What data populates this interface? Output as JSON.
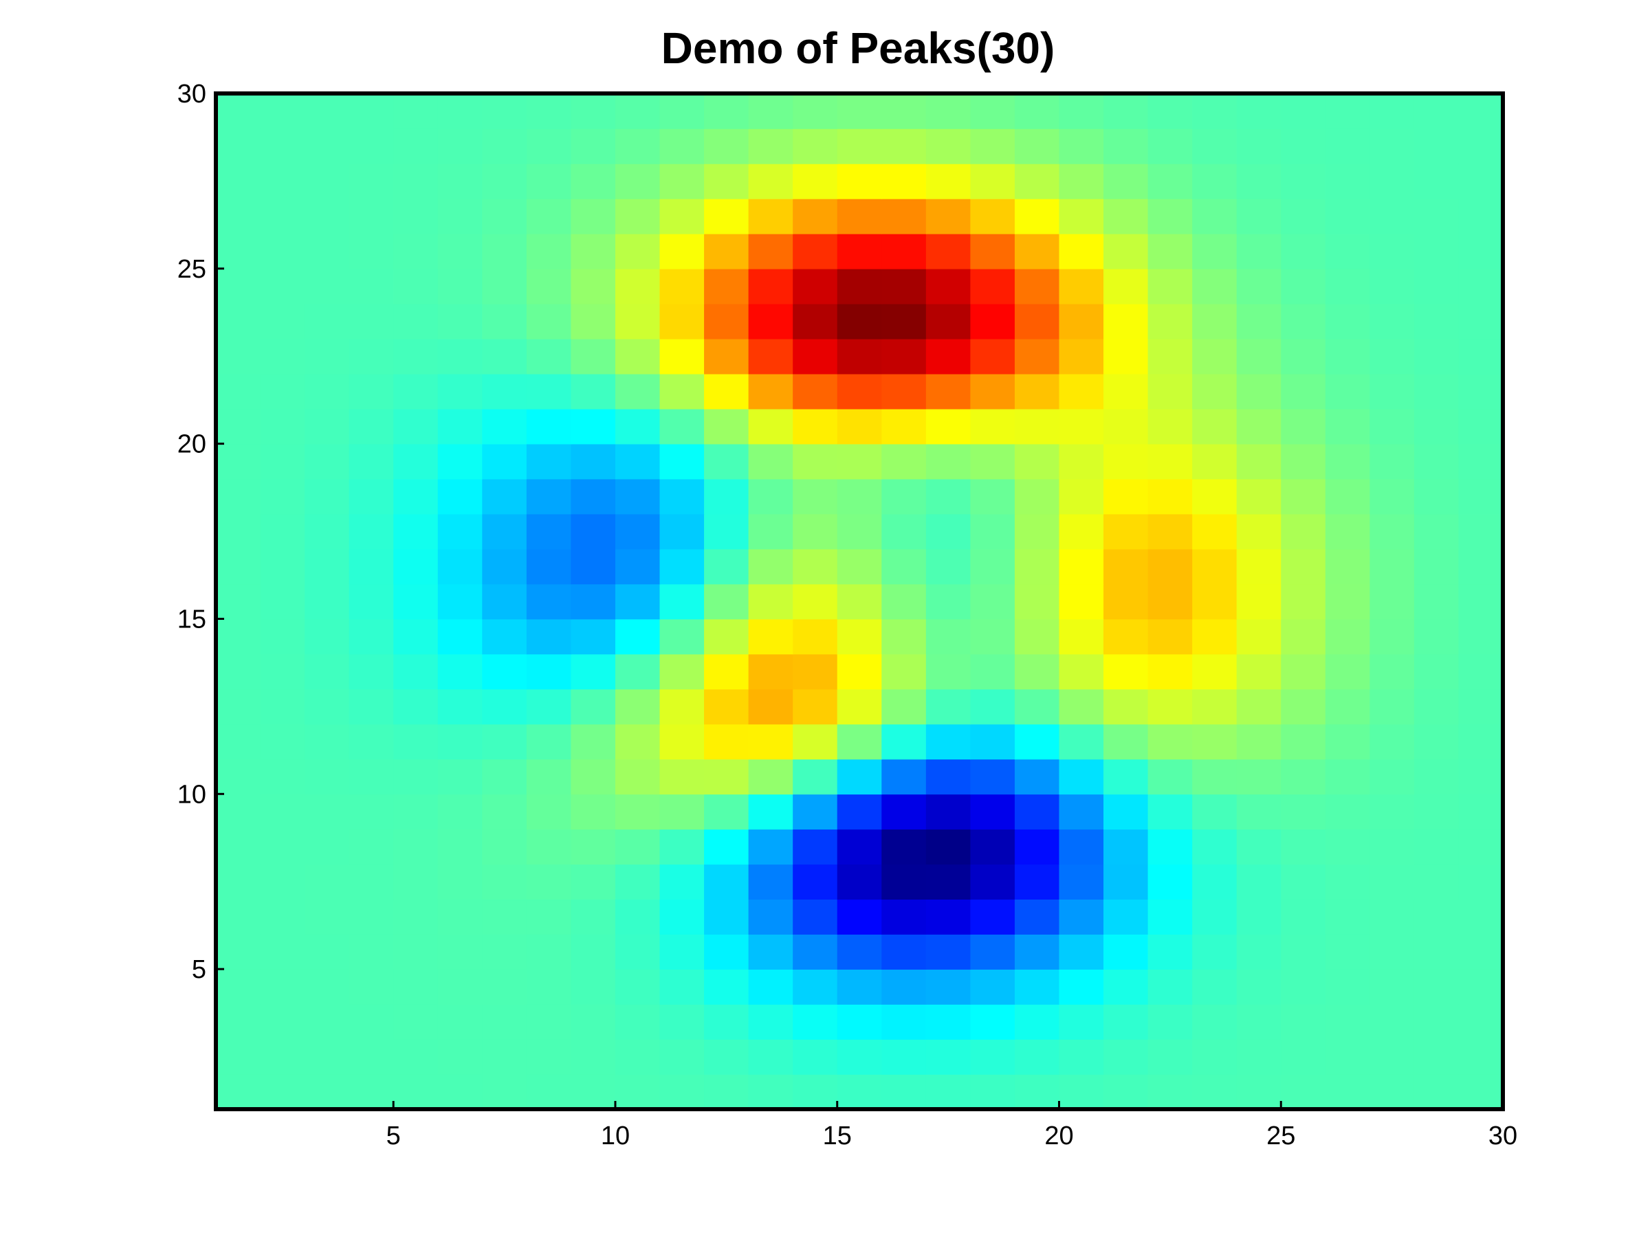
{
  "chart_data": {
    "type": "heatmap",
    "title": "Demo of Peaks(30)",
    "xlabel": "",
    "ylabel": "",
    "xlim": [
      1,
      30
    ],
    "ylim": [
      1,
      30
    ],
    "xticks": [
      5,
      10,
      15,
      20,
      25,
      30
    ],
    "yticks": [
      5,
      10,
      15,
      20,
      25,
      30
    ],
    "colormap": "jet",
    "function": "peaks",
    "grid_size": 30,
    "z_range": [
      -6.55,
      8.08
    ],
    "grid": false,
    "frame_color": "#000000"
  }
}
